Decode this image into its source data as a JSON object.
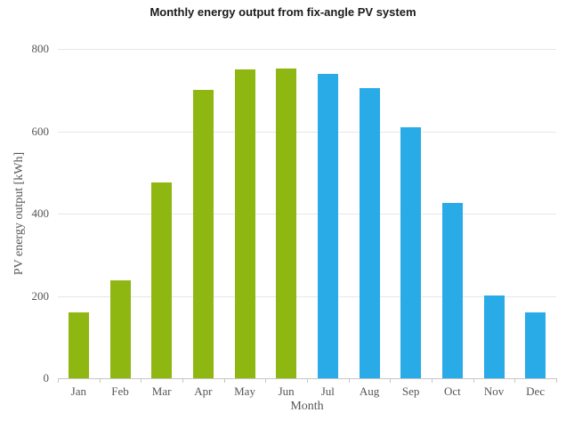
{
  "chart_data": {
    "type": "bar",
    "title": "Monthly energy output from fix-angle PV system",
    "xlabel": "Month",
    "ylabel": "PV energy output [kWh]",
    "categories": [
      "Jan",
      "Feb",
      "Mar",
      "Apr",
      "May",
      "Jun",
      "Jul",
      "Aug",
      "Sep",
      "Oct",
      "Nov",
      "Dec"
    ],
    "values": [
      160,
      238,
      475,
      700,
      750,
      753,
      740,
      705,
      610,
      425,
      202,
      160
    ],
    "bar_colors": [
      "#8fb712",
      "#8fb712",
      "#8fb712",
      "#8fb712",
      "#8fb712",
      "#8fb712",
      "#29abe8",
      "#29abe8",
      "#29abe8",
      "#29abe8",
      "#29abe8",
      "#29abe8"
    ],
    "palette": {
      "first_half_green": "#8fb712",
      "second_half_blue": "#29abe8"
    },
    "ylim": [
      0,
      800
    ],
    "ytick_step": 200,
    "yticks": [
      "0",
      "200",
      "400",
      "600",
      "800"
    ],
    "grid": "horizontal",
    "legend": "none"
  }
}
